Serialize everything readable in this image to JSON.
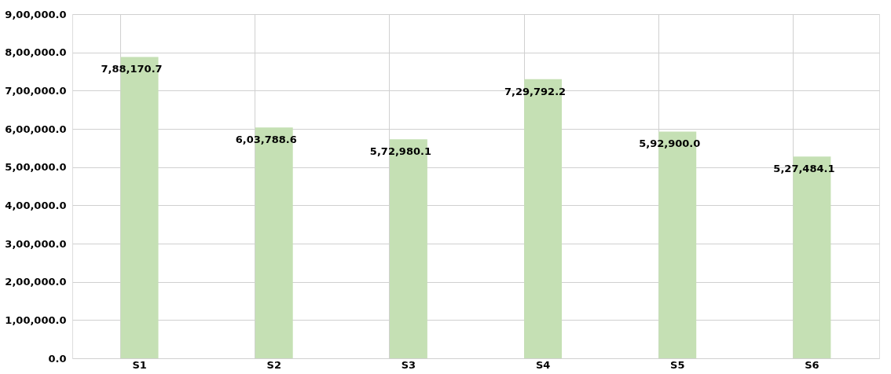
{
  "chart_data": {
    "type": "bar",
    "categories": [
      "S1",
      "S2",
      "S3",
      "S4",
      "S5",
      "S6"
    ],
    "values": [
      788170.7,
      603788.6,
      572980.1,
      729792.2,
      592900.0,
      527484.1
    ],
    "value_labels": [
      "7,88,170.7",
      "6,03,788.6",
      "5,72,980.1",
      "7,29,792.2",
      "5,92,900.0",
      "5,27,484.1"
    ],
    "color": "#c5e0b4",
    "ylim": [
      0,
      900000
    ],
    "yticks": [
      {
        "value": 0,
        "label": "0.0"
      },
      {
        "value": 100000,
        "label": "1,00,000.0"
      },
      {
        "value": 200000,
        "label": "2,00,000.0"
      },
      {
        "value": 300000,
        "label": "3,00,000.0"
      },
      {
        "value": 400000,
        "label": "4,00,000.0"
      },
      {
        "value": 500000,
        "label": "5,00,000.0"
      },
      {
        "value": 600000,
        "label": "6,00,000.0"
      },
      {
        "value": 700000,
        "label": "7,00,000.0"
      },
      {
        "value": 800000,
        "label": "8,00,000.0"
      },
      {
        "value": 900000,
        "label": "9,00,000.0"
      }
    ],
    "grid": true
  }
}
